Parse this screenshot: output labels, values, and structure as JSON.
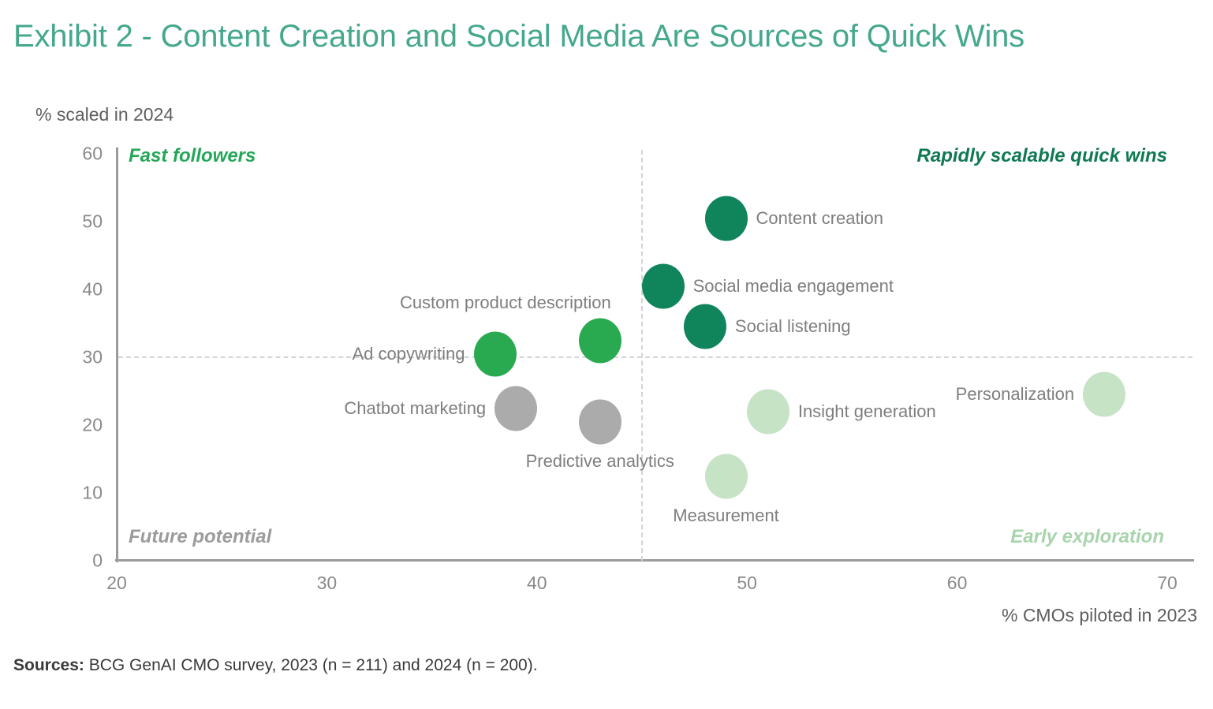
{
  "title": "Exhibit 2 - Content Creation and Social Media Are Sources of Quick Wins",
  "sources": {
    "label": "Sources:",
    "text": " BCG GenAI CMO survey, 2023 (n = 211) and 2024 (n = 200)."
  },
  "chart_data": {
    "type": "scatter",
    "title": "Exhibit 2 - Content Creation and Social Media Are Sources of Quick Wins",
    "xlabel": "% CMOs piloted in 2023",
    "ylabel": "% scaled in 2024",
    "xlim": [
      20,
      70
    ],
    "ylim": [
      0,
      60
    ],
    "x_ticks": [
      20,
      30,
      40,
      50,
      60,
      70
    ],
    "y_ticks": [
      0,
      10,
      20,
      30,
      40,
      50,
      60
    ],
    "grid": false,
    "legend": "none",
    "reference_lines": {
      "vertical_x": 45,
      "horizontal_y": 30,
      "style": "dashed"
    },
    "quadrant_labels": [
      {
        "text": "Fast followers",
        "position": "top-left",
        "color": "#23A757"
      },
      {
        "text": "Rapidly scalable quick wins",
        "position": "top-right",
        "color": "#0F7A52"
      },
      {
        "text": "Future potential",
        "position": "bottom-left",
        "color": "#9B9B9B"
      },
      {
        "text": "Early exploration",
        "position": "bottom-right",
        "color": "#A8D4AC"
      }
    ],
    "groups": {
      "dark_green": "#10855B",
      "medium_green": "#2AAA50",
      "gray": "#ABABAB",
      "light_green": "#C7E3C6"
    },
    "points": [
      {
        "label": "Content creation",
        "x": 49,
        "y": 50.5,
        "group": "dark_green",
        "label_side": "right"
      },
      {
        "label": "Social media engagement",
        "x": 46,
        "y": 40.5,
        "group": "dark_green",
        "label_side": "right"
      },
      {
        "label": "Social listening",
        "x": 48,
        "y": 34.5,
        "group": "dark_green",
        "label_side": "right"
      },
      {
        "label": "Custom product description",
        "x": 43,
        "y": 32.5,
        "group": "medium_green",
        "label_side": "above"
      },
      {
        "label": "Ad copywriting",
        "x": 38,
        "y": 30.5,
        "group": "medium_green",
        "label_side": "left"
      },
      {
        "label": "Chatbot marketing",
        "x": 39,
        "y": 22.5,
        "group": "gray",
        "label_side": "left"
      },
      {
        "label": "Predictive analytics",
        "x": 43,
        "y": 20.5,
        "group": "gray",
        "label_side": "below"
      },
      {
        "label": "Insight generation",
        "x": 51,
        "y": 22,
        "group": "light_green",
        "label_side": "right"
      },
      {
        "label": "Measurement",
        "x": 49,
        "y": 12.5,
        "group": "light_green",
        "label_side": "below"
      },
      {
        "label": "Personalization",
        "x": 67,
        "y": 24.5,
        "group": "light_green",
        "label_side": "left"
      }
    ]
  }
}
